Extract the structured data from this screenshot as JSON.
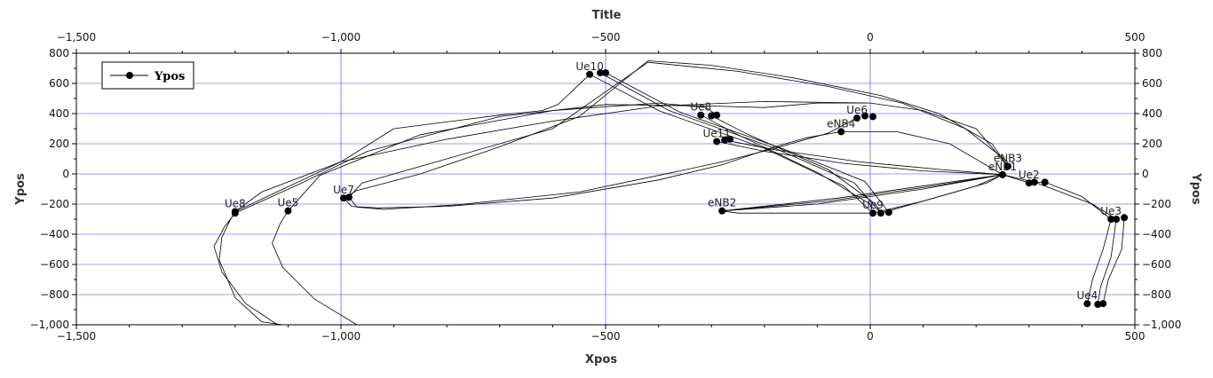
{
  "chart_data": {
    "type": "scatter",
    "title": "Title",
    "xlabel": "Xpos",
    "ylabel": "Ypos",
    "xlim": [
      -1500,
      500
    ],
    "ylim": [
      -1000,
      800
    ],
    "x_ticks": [
      "−1,500",
      "−1,000",
      "−500",
      "0",
      "500"
    ],
    "y_ticks": [
      "−1,000",
      "−800",
      "−600",
      "−400",
      "−200",
      "0",
      "200",
      "400",
      "600",
      "800"
    ],
    "grid": true,
    "legend": {
      "placement": "top-left",
      "entries": [
        "Ypos"
      ]
    },
    "series": [
      {
        "name": "Ypos",
        "points": [
          {
            "x": -1200,
            "y": -250,
            "label": "Ue8"
          },
          {
            "x": -1200,
            "y": -260,
            "label": ""
          },
          {
            "x": -1100,
            "y": -245,
            "label": "Ue5"
          },
          {
            "x": -995,
            "y": -160,
            "label": "Ue7"
          },
          {
            "x": -985,
            "y": -155,
            "label": ""
          },
          {
            "x": -530,
            "y": 660,
            "label": "Ue10"
          },
          {
            "x": -510,
            "y": 670,
            "label": ""
          },
          {
            "x": -500,
            "y": 670,
            "label": ""
          },
          {
            "x": -320,
            "y": 390,
            "label": "Ue8"
          },
          {
            "x": -300,
            "y": 385,
            "label": ""
          },
          {
            "x": -290,
            "y": 390,
            "label": ""
          },
          {
            "x": -290,
            "y": 215,
            "label": "Ue11"
          },
          {
            "x": -275,
            "y": 225,
            "label": ""
          },
          {
            "x": -265,
            "y": 230,
            "label": ""
          },
          {
            "x": -280,
            "y": -245,
            "label": "eNB2"
          },
          {
            "x": -55,
            "y": 280,
            "label": "eNB4"
          },
          {
            "x": -25,
            "y": 370,
            "label": "Ue6"
          },
          {
            "x": -10,
            "y": 385,
            "label": ""
          },
          {
            "x": 5,
            "y": 380,
            "label": ""
          },
          {
            "x": 5,
            "y": -260,
            "label": "Ue9"
          },
          {
            "x": 20,
            "y": -260,
            "label": ""
          },
          {
            "x": 35,
            "y": -255,
            "label": ""
          },
          {
            "x": 260,
            "y": 50,
            "label": "eNB3"
          },
          {
            "x": 250,
            "y": -5,
            "label": "eNB1"
          },
          {
            "x": 300,
            "y": -60,
            "label": "Ue2"
          },
          {
            "x": 310,
            "y": -55,
            "label": ""
          },
          {
            "x": 330,
            "y": -55,
            "label": ""
          },
          {
            "x": 455,
            "y": -300,
            "label": "Ue3"
          },
          {
            "x": 465,
            "y": -300,
            "label": ""
          },
          {
            "x": 480,
            "y": -290,
            "label": ""
          },
          {
            "x": 410,
            "y": -860,
            "label": "Ue4"
          },
          {
            "x": 430,
            "y": -865,
            "label": ""
          },
          {
            "x": 440,
            "y": -860,
            "label": ""
          }
        ]
      }
    ],
    "trajectories": [
      [
        [
          -1200,
          -250
        ],
        [
          -1210,
          -310
        ],
        [
          -1225,
          -420
        ],
        [
          -1230,
          -570
        ],
        [
          -1200,
          -820
        ],
        [
          -1150,
          -980
        ],
        [
          -1110,
          -1000
        ]
      ],
      [
        [
          -1200,
          -260
        ],
        [
          -1220,
          -350
        ],
        [
          -1240,
          -480
        ],
        [
          -1225,
          -650
        ],
        [
          -1180,
          -860
        ],
        [
          -1120,
          -1000
        ]
      ],
      [
        [
          -1100,
          -245
        ],
        [
          -1115,
          -330
        ],
        [
          -1130,
          -460
        ],
        [
          -1110,
          -620
        ],
        [
          -1050,
          -830
        ],
        [
          -970,
          -1000
        ]
      ],
      [
        [
          -1200,
          -250
        ],
        [
          -1150,
          -120
        ],
        [
          -1000,
          80
        ],
        [
          -800,
          230
        ],
        [
          -600,
          350
        ],
        [
          -400,
          450
        ],
        [
          -200,
          480
        ],
        [
          0,
          470
        ],
        [
          100,
          420
        ],
        [
          200,
          300
        ],
        [
          260,
          50
        ]
      ],
      [
        [
          -1200,
          -260
        ],
        [
          -1080,
          -70
        ],
        [
          -950,
          150
        ],
        [
          -700,
          380
        ],
        [
          -500,
          460
        ],
        [
          -300,
          450
        ],
        [
          -200,
          440
        ],
        [
          -100,
          470
        ],
        [
          -5,
          470
        ]
      ],
      [
        [
          -1100,
          -245
        ],
        [
          -1040,
          -10
        ],
        [
          -850,
          260
        ],
        [
          -600,
          420
        ],
        [
          -400,
          470
        ],
        [
          -310,
          440
        ],
        [
          -290,
          390
        ]
      ],
      [
        [
          -995,
          -160
        ],
        [
          -980,
          -215
        ],
        [
          -930,
          -225
        ],
        [
          -800,
          -215
        ],
        [
          -600,
          -160
        ],
        [
          -400,
          -40
        ],
        [
          -280,
          60
        ],
        [
          -180,
          180
        ],
        [
          -120,
          240
        ],
        [
          -55,
          280
        ]
      ],
      [
        [
          -985,
          -155
        ],
        [
          -970,
          -220
        ],
        [
          -920,
          -235
        ],
        [
          -780,
          -205
        ],
        [
          -550,
          -120
        ],
        [
          -380,
          5
        ],
        [
          -280,
          80
        ],
        [
          -180,
          170
        ],
        [
          -80,
          270
        ],
        [
          -25,
          370
        ]
      ],
      [
        [
          -995,
          -160
        ],
        [
          -970,
          -110
        ],
        [
          -850,
          0
        ],
        [
          -700,
          180
        ],
        [
          -550,
          380
        ],
        [
          -420,
          750
        ],
        [
          -300,
          720
        ],
        [
          -150,
          640
        ],
        [
          20,
          520
        ],
        [
          130,
          400
        ],
        [
          230,
          200
        ],
        [
          260,
          50
        ]
      ],
      [
        [
          -985,
          -155
        ],
        [
          -960,
          -60
        ],
        [
          -800,
          100
        ],
        [
          -600,
          300
        ],
        [
          -420,
          740
        ],
        [
          -250,
          680
        ],
        [
          -80,
          580
        ],
        [
          60,
          470
        ],
        [
          180,
          300
        ],
        [
          260,
          80
        ]
      ],
      [
        [
          -530,
          660
        ],
        [
          -400,
          420
        ],
        [
          -200,
          170
        ],
        [
          -50,
          -80
        ],
        [
          5,
          -260
        ]
      ],
      [
        [
          -510,
          670
        ],
        [
          -380,
          420
        ],
        [
          -180,
          170
        ],
        [
          -30,
          -60
        ],
        [
          20,
          -260
        ]
      ],
      [
        [
          -500,
          670
        ],
        [
          -360,
          410
        ],
        [
          -160,
          160
        ],
        [
          -10,
          -50
        ],
        [
          35,
          -255
        ]
      ],
      [
        [
          -320,
          390
        ],
        [
          -250,
          260
        ],
        [
          -100,
          10
        ],
        [
          0,
          -200
        ],
        [
          5,
          -260
        ]
      ],
      [
        [
          -300,
          385
        ],
        [
          -230,
          260
        ],
        [
          -80,
          30
        ],
        [
          10,
          -200
        ],
        [
          20,
          -260
        ]
      ],
      [
        [
          -290,
          215
        ],
        [
          -200,
          150
        ],
        [
          -50,
          70
        ],
        [
          100,
          20
        ],
        [
          250,
          -5
        ]
      ],
      [
        [
          -275,
          225
        ],
        [
          -180,
          160
        ],
        [
          -20,
          80
        ],
        [
          130,
          30
        ],
        [
          250,
          -5
        ]
      ],
      [
        [
          -280,
          -245
        ],
        [
          -100,
          -200
        ],
        [
          100,
          -100
        ],
        [
          250,
          -5
        ]
      ],
      [
        [
          -280,
          -245
        ],
        [
          -80,
          -180
        ],
        [
          120,
          -80
        ],
        [
          250,
          -5
        ]
      ],
      [
        [
          -280,
          -245
        ],
        [
          -60,
          -160
        ],
        [
          140,
          -60
        ],
        [
          250,
          -5
        ]
      ],
      [
        [
          -280,
          -245
        ],
        [
          -250,
          -260
        ],
        [
          0,
          -260
        ]
      ],
      [
        [
          5,
          -260
        ],
        [
          100,
          -180
        ],
        [
          200,
          -80
        ],
        [
          250,
          -5
        ]
      ],
      [
        [
          20,
          -260
        ],
        [
          120,
          -160
        ],
        [
          220,
          -60
        ],
        [
          250,
          -5
        ]
      ],
      [
        [
          250,
          -5
        ],
        [
          300,
          -60
        ],
        [
          330,
          -55
        ],
        [
          400,
          -150
        ],
        [
          455,
          -300
        ]
      ],
      [
        [
          250,
          -5
        ],
        [
          310,
          -55
        ],
        [
          420,
          -200
        ],
        [
          465,
          -300
        ]
      ],
      [
        [
          455,
          -300
        ],
        [
          440,
          -500
        ],
        [
          420,
          -700
        ],
        [
          410,
          -860
        ]
      ],
      [
        [
          465,
          -300
        ],
        [
          455,
          -550
        ],
        [
          435,
          -750
        ],
        [
          430,
          -865
        ]
      ],
      [
        [
          480,
          -290
        ],
        [
          475,
          -500
        ],
        [
          450,
          -700
        ],
        [
          440,
          -860
        ]
      ],
      [
        [
          -55,
          280
        ],
        [
          50,
          280
        ],
        [
          150,
          200
        ],
        [
          250,
          -5
        ]
      ],
      [
        [
          -530,
          660
        ],
        [
          -560,
          560
        ],
        [
          -590,
          460
        ],
        [
          -620,
          420
        ],
        [
          -700,
          390
        ],
        [
          -900,
          300
        ],
        [
          -1000,
          80
        ],
        [
          -1200,
          -250
        ]
      ]
    ]
  }
}
